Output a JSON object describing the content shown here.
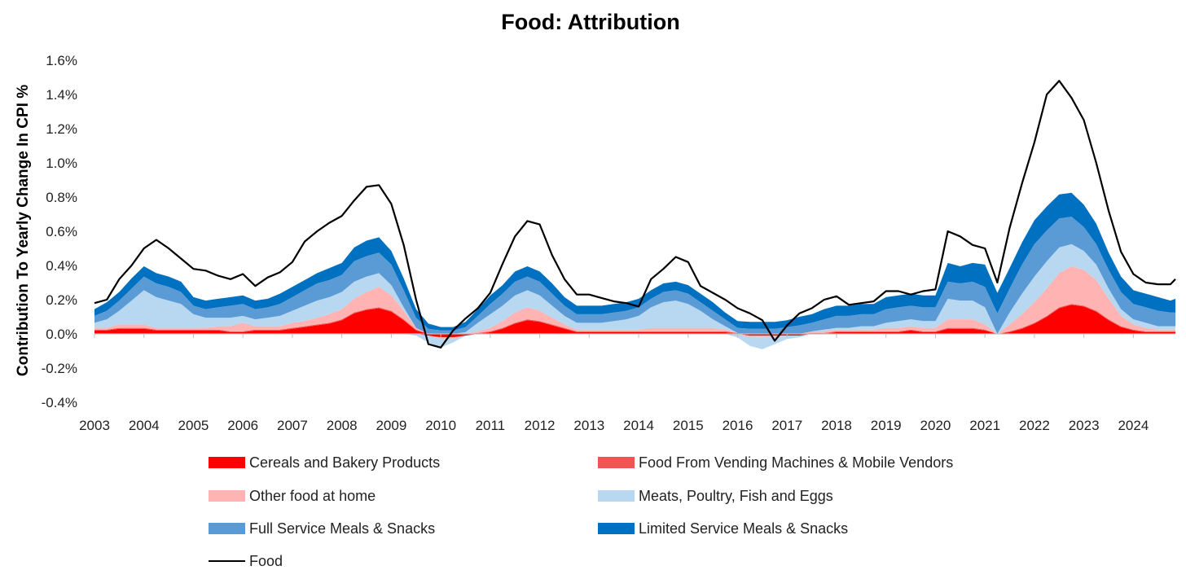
{
  "chart_data": {
    "type": "area",
    "title": "Food: Attribution",
    "xlabel": "",
    "ylabel": "Contribution To Yearly Change In CPI %",
    "ylim": [
      -0.4,
      1.6
    ],
    "y_ticks": [
      "-0.4%",
      "-0.2%",
      "0.0%",
      "0.2%",
      "0.4%",
      "0.6%",
      "0.8%",
      "1.0%",
      "1.2%",
      "1.4%",
      "1.6%"
    ],
    "x_ticks": [
      "2003",
      "2004",
      "2005",
      "2006",
      "2007",
      "2008",
      "2009",
      "2010",
      "2011",
      "2012",
      "2013",
      "2014",
      "2015",
      "2016",
      "2017",
      "2018",
      "2019",
      "2020",
      "2021",
      "2022",
      "2023",
      "2024"
    ],
    "xlim": [
      2003.0,
      2024.85
    ],
    "grid": false,
    "legend_position": "bottom",
    "x": [
      2003.0,
      2003.25,
      2003.5,
      2003.75,
      2004.0,
      2004.25,
      2004.5,
      2004.75,
      2005.0,
      2005.25,
      2005.5,
      2005.75,
      2006.0,
      2006.25,
      2006.5,
      2006.75,
      2007.0,
      2007.25,
      2007.5,
      2007.75,
      2008.0,
      2008.25,
      2008.5,
      2008.75,
      2009.0,
      2009.25,
      2009.5,
      2009.75,
      2010.0,
      2010.25,
      2010.5,
      2010.75,
      2011.0,
      2011.25,
      2011.5,
      2011.75,
      2012.0,
      2012.25,
      2012.5,
      2012.75,
      2013.0,
      2013.25,
      2013.5,
      2013.75,
      2014.0,
      2014.25,
      2014.5,
      2014.75,
      2015.0,
      2015.25,
      2015.5,
      2015.75,
      2016.0,
      2016.25,
      2016.5,
      2016.75,
      2017.0,
      2017.25,
      2017.5,
      2017.75,
      2018.0,
      2018.25,
      2018.5,
      2018.75,
      2019.0,
      2019.25,
      2019.5,
      2019.75,
      2020.0,
      2020.25,
      2020.5,
      2020.75,
      2021.0,
      2021.25,
      2021.5,
      2021.75,
      2022.0,
      2022.25,
      2022.5,
      2022.75,
      2023.0,
      2023.25,
      2023.5,
      2023.75,
      2024.0,
      2024.25,
      2024.5,
      2024.75,
      2024.85
    ],
    "series": [
      {
        "name": "Cereals and Bakery Products",
        "color": "#ff0000",
        "values": [
          0.02,
          0.02,
          0.03,
          0.03,
          0.03,
          0.02,
          0.02,
          0.02,
          0.02,
          0.02,
          0.02,
          0.01,
          0.01,
          0.02,
          0.02,
          0.02,
          0.03,
          0.04,
          0.05,
          0.06,
          0.08,
          0.12,
          0.14,
          0.15,
          0.13,
          0.08,
          0.02,
          -0.01,
          -0.02,
          -0.02,
          -0.01,
          0.0,
          0.01,
          0.03,
          0.06,
          0.08,
          0.07,
          0.05,
          0.03,
          0.01,
          0.01,
          0.01,
          0.01,
          0.01,
          0.01,
          0.01,
          0.01,
          0.01,
          0.01,
          0.01,
          0.01,
          0.01,
          0.0,
          -0.01,
          -0.01,
          -0.01,
          -0.01,
          -0.01,
          0.0,
          0.0,
          0.01,
          0.01,
          0.01,
          0.01,
          0.01,
          0.01,
          0.02,
          0.01,
          0.01,
          0.03,
          0.03,
          0.03,
          0.02,
          0.0,
          0.01,
          0.03,
          0.06,
          0.1,
          0.15,
          0.17,
          0.16,
          0.13,
          0.08,
          0.04,
          0.02,
          0.01,
          0.01,
          0.01,
          0.01
        ]
      },
      {
        "name": "Food From Vending Machines & Mobile Vendors",
        "color": "#f25454",
        "values": [
          0.005,
          0.005,
          0.005,
          0.005,
          0.005,
          0.005,
          0.005,
          0.005,
          0.005,
          0.005,
          0.005,
          0.005,
          0.005,
          0.005,
          0.005,
          0.005,
          0.005,
          0.005,
          0.005,
          0.005,
          0.005,
          0.005,
          0.005,
          0.005,
          0.005,
          0.005,
          0.005,
          0.0,
          0.0,
          0.0,
          0.0,
          0.005,
          0.005,
          0.005,
          0.005,
          0.005,
          0.005,
          0.005,
          0.005,
          0.005,
          0.005,
          0.005,
          0.005,
          0.005,
          0.005,
          0.005,
          0.005,
          0.005,
          0.005,
          0.005,
          0.005,
          0.005,
          0.005,
          0.0,
          0.0,
          0.0,
          0.0,
          0.0,
          0.005,
          0.005,
          0.005,
          0.005,
          0.005,
          0.005,
          0.005,
          0.005,
          0.005,
          0.005,
          0.005,
          0.005,
          0.005,
          0.005,
          0.005,
          0.0,
          0.005,
          0.005,
          0.005,
          0.005,
          0.005,
          0.005,
          0.005,
          0.005,
          0.005,
          0.005,
          0.005,
          0.005,
          0.005,
          0.005,
          0.005
        ]
      },
      {
        "name": "Other food at home",
        "color": "#ffb3b3",
        "values": [
          0.01,
          0.01,
          0.02,
          0.02,
          0.02,
          0.01,
          0.01,
          0.01,
          0.01,
          0.01,
          0.02,
          0.03,
          0.05,
          0.02,
          0.02,
          0.02,
          0.03,
          0.03,
          0.04,
          0.05,
          0.06,
          0.08,
          0.1,
          0.12,
          0.09,
          0.05,
          0.01,
          0.0,
          -0.01,
          -0.01,
          0.0,
          0.01,
          0.02,
          0.04,
          0.06,
          0.07,
          0.06,
          0.04,
          0.02,
          0.01,
          0.01,
          0.01,
          0.01,
          0.01,
          0.01,
          0.02,
          0.02,
          0.02,
          0.02,
          0.02,
          0.02,
          0.01,
          0.0,
          -0.01,
          -0.01,
          -0.01,
          0.0,
          0.0,
          0.01,
          0.01,
          0.01,
          0.01,
          0.01,
          0.01,
          0.02,
          0.02,
          0.02,
          0.02,
          0.02,
          0.05,
          0.05,
          0.05,
          0.03,
          0.0,
          0.04,
          0.08,
          0.12,
          0.16,
          0.2,
          0.22,
          0.21,
          0.18,
          0.12,
          0.06,
          0.03,
          0.02,
          0.01,
          0.01,
          0.01
        ]
      },
      {
        "name": "Meats, Poultry, Fish and Eggs",
        "color": "#b8d7f0",
        "values": [
          0.03,
          0.05,
          0.08,
          0.14,
          0.2,
          0.18,
          0.16,
          0.14,
          0.08,
          0.06,
          0.05,
          0.05,
          0.04,
          0.04,
          0.05,
          0.06,
          0.07,
          0.09,
          0.1,
          0.1,
          0.1,
          0.1,
          0.09,
          0.08,
          0.06,
          0.02,
          -0.01,
          -0.04,
          -0.05,
          -0.02,
          0.01,
          0.05,
          0.08,
          0.09,
          0.1,
          0.1,
          0.09,
          0.07,
          0.05,
          0.04,
          0.04,
          0.04,
          0.05,
          0.06,
          0.08,
          0.12,
          0.15,
          0.16,
          0.14,
          0.1,
          0.05,
          0.02,
          -0.02,
          -0.05,
          -0.07,
          -0.04,
          -0.02,
          -0.01,
          0.0,
          0.01,
          0.01,
          0.01,
          0.02,
          0.02,
          0.03,
          0.04,
          0.04,
          0.04,
          0.04,
          0.12,
          0.11,
          0.11,
          0.1,
          0.0,
          0.07,
          0.12,
          0.15,
          0.16,
          0.15,
          0.13,
          0.11,
          0.09,
          0.06,
          0.04,
          0.03,
          0.03,
          0.02,
          0.02,
          0.02
        ]
      },
      {
        "name": "Full Service Meals & Snacks",
        "color": "#5b9bd5",
        "values": [
          0.04,
          0.05,
          0.06,
          0.07,
          0.08,
          0.08,
          0.08,
          0.07,
          0.05,
          0.05,
          0.06,
          0.07,
          0.07,
          0.06,
          0.06,
          0.07,
          0.08,
          0.09,
          0.1,
          0.1,
          0.1,
          0.12,
          0.12,
          0.12,
          0.12,
          0.1,
          0.06,
          0.03,
          0.02,
          0.02,
          0.03,
          0.04,
          0.06,
          0.07,
          0.08,
          0.08,
          0.08,
          0.07,
          0.06,
          0.05,
          0.05,
          0.05,
          0.05,
          0.05,
          0.05,
          0.05,
          0.06,
          0.06,
          0.06,
          0.05,
          0.05,
          0.04,
          0.03,
          0.03,
          0.03,
          0.03,
          0.04,
          0.05,
          0.05,
          0.06,
          0.07,
          0.07,
          0.07,
          0.07,
          0.08,
          0.08,
          0.08,
          0.08,
          0.08,
          0.1,
          0.1,
          0.11,
          0.12,
          0.12,
          0.14,
          0.17,
          0.19,
          0.18,
          0.17,
          0.16,
          0.14,
          0.12,
          0.11,
          0.1,
          0.09,
          0.09,
          0.09,
          0.08,
          0.08
        ]
      },
      {
        "name": "Limited Service Meals & Snacks",
        "color": "#0070c0",
        "values": [
          0.04,
          0.05,
          0.05,
          0.06,
          0.06,
          0.06,
          0.06,
          0.06,
          0.05,
          0.05,
          0.05,
          0.05,
          0.05,
          0.05,
          0.05,
          0.06,
          0.06,
          0.06,
          0.06,
          0.07,
          0.07,
          0.08,
          0.09,
          0.09,
          0.08,
          0.07,
          0.05,
          0.03,
          0.02,
          0.02,
          0.03,
          0.04,
          0.05,
          0.05,
          0.06,
          0.06,
          0.06,
          0.06,
          0.05,
          0.05,
          0.05,
          0.05,
          0.05,
          0.05,
          0.05,
          0.05,
          0.05,
          0.05,
          0.05,
          0.05,
          0.05,
          0.04,
          0.04,
          0.04,
          0.04,
          0.04,
          0.04,
          0.05,
          0.05,
          0.06,
          0.06,
          0.06,
          0.06,
          0.06,
          0.07,
          0.07,
          0.07,
          0.07,
          0.07,
          0.11,
          0.1,
          0.11,
          0.13,
          0.12,
          0.12,
          0.13,
          0.14,
          0.14,
          0.14,
          0.14,
          0.13,
          0.12,
          0.1,
          0.09,
          0.08,
          0.08,
          0.08,
          0.07,
          0.08
        ]
      },
      {
        "name": "Food",
        "color": "#000000",
        "line": true,
        "values": [
          0.18,
          0.2,
          0.32,
          0.4,
          0.5,
          0.55,
          0.5,
          0.44,
          0.38,
          0.37,
          0.34,
          0.32,
          0.35,
          0.28,
          0.33,
          0.36,
          0.42,
          0.54,
          0.6,
          0.65,
          0.69,
          0.78,
          0.86,
          0.87,
          0.76,
          0.52,
          0.2,
          -0.06,
          -0.08,
          0.02,
          0.09,
          0.15,
          0.24,
          0.41,
          0.57,
          0.66,
          0.64,
          0.46,
          0.32,
          0.23,
          0.23,
          0.21,
          0.19,
          0.18,
          0.16,
          0.32,
          0.38,
          0.45,
          0.42,
          0.28,
          0.24,
          0.2,
          0.15,
          0.12,
          0.08,
          -0.04,
          0.05,
          0.12,
          0.15,
          0.2,
          0.22,
          0.17,
          0.18,
          0.19,
          0.25,
          0.25,
          0.23,
          0.25,
          0.26,
          0.6,
          0.57,
          0.52,
          0.5,
          0.3,
          0.62,
          0.88,
          1.12,
          1.4,
          1.48,
          1.38,
          1.25,
          1.0,
          0.72,
          0.48,
          0.35,
          0.3,
          0.29,
          0.29,
          0.32
        ]
      }
    ]
  }
}
